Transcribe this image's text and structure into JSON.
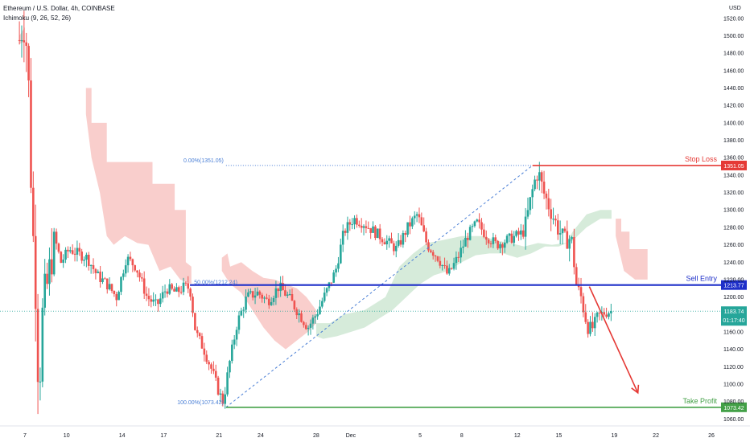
{
  "legend": {
    "symbol": "Ethereum / U.S. Dollar, 4h, COINBASE",
    "indicator": "Ichimoku (9, 26, 52, 26)"
  },
  "colors": {
    "up": "#26a69a",
    "down": "#ef5350",
    "cloud_bear": "#f8c5c3",
    "cloud_bull": "#cfe8d3",
    "stop": "#e53935",
    "entry": "#1e2fc9",
    "target": "#43a047",
    "fib": "#4a7fd6"
  },
  "chart_data": {
    "type": "candlestick",
    "title": "",
    "symbol": "Ethereum / U.S. Dollar",
    "timeframe": "4h",
    "exchange": "COINBASE",
    "indicator": "Ichimoku (9, 26, 52, 26)",
    "y_axis_label": "USD",
    "ylim": [
      1052,
      1530
    ],
    "y_ticks": [
      1060,
      1080,
      1100,
      1120,
      1140,
      1160,
      1180,
      1200,
      1220,
      1240,
      1260,
      1280,
      1300,
      1320,
      1340,
      1360,
      1380,
      1400,
      1420,
      1440,
      1460,
      1480,
      1500,
      1520
    ],
    "x_range_days": [
      6.6,
      27.1
    ],
    "x_ticks": [
      {
        "label": "7",
        "day": 7
      },
      {
        "label": "10",
        "day": 10
      },
      {
        "label": "14",
        "day": 14
      },
      {
        "label": "17",
        "day": 17
      },
      {
        "label": "21",
        "day": 21
      },
      {
        "label": "24",
        "day": 24
      },
      {
        "label": "28",
        "day": 28
      },
      {
        "label": "Dec",
        "day": 30.5
      },
      {
        "label": "5",
        "day": 35.5
      },
      {
        "label": "8",
        "day": 38.5
      },
      {
        "label": "12",
        "day": 42.5
      },
      {
        "label": "15",
        "day": 45.5
      },
      {
        "label": "19",
        "day": 49.5
      },
      {
        "label": "22",
        "day": 52.5
      },
      {
        "label": "26",
        "day": 56.5
      }
    ],
    "price_path": [
      {
        "day": 6.6,
        "price": 1495
      },
      {
        "day": 6.9,
        "price": 1520
      },
      {
        "day": 7.2,
        "price": 1480
      },
      {
        "day": 7.5,
        "price": 1300
      },
      {
        "day": 7.8,
        "price": 1200
      },
      {
        "day": 8.0,
        "price": 1085
      },
      {
        "day": 8.3,
        "price": 1190
      },
      {
        "day": 8.7,
        "price": 1220
      },
      {
        "day": 9.1,
        "price": 1270
      },
      {
        "day": 9.6,
        "price": 1240
      },
      {
        "day": 10.2,
        "price": 1255
      },
      {
        "day": 10.8,
        "price": 1250
      },
      {
        "day": 11.5,
        "price": 1245
      },
      {
        "day": 12.2,
        "price": 1225
      },
      {
        "day": 12.9,
        "price": 1215
      },
      {
        "day": 13.6,
        "price": 1200
      },
      {
        "day": 14.3,
        "price": 1245
      },
      {
        "day": 15.0,
        "price": 1235
      },
      {
        "day": 15.8,
        "price": 1200
      },
      {
        "day": 16.5,
        "price": 1190
      },
      {
        "day": 17.2,
        "price": 1210
      },
      {
        "day": 17.9,
        "price": 1205
      },
      {
        "day": 18.5,
        "price": 1212
      },
      {
        "day": 18.9,
        "price": 1210
      },
      {
        "day": 19.3,
        "price": 1160
      },
      {
        "day": 19.9,
        "price": 1140
      },
      {
        "day": 20.5,
        "price": 1115
      },
      {
        "day": 21.0,
        "price": 1090
      },
      {
        "day": 21.3,
        "price": 1079
      },
      {
        "day": 21.7,
        "price": 1120
      },
      {
        "day": 22.3,
        "price": 1170
      },
      {
        "day": 23.0,
        "price": 1200
      },
      {
        "day": 23.8,
        "price": 1205
      },
      {
        "day": 24.5,
        "price": 1195
      },
      {
        "day": 25.3,
        "price": 1212
      },
      {
        "day": 26.0,
        "price": 1200
      },
      {
        "day": 26.8,
        "price": 1180
      },
      {
        "day": 27.4,
        "price": 1165
      },
      {
        "day": 28.0,
        "price": 1180
      },
      {
        "day": 28.7,
        "price": 1205
      },
      {
        "day": 29.4,
        "price": 1230
      },
      {
        "day": 30.0,
        "price": 1275
      },
      {
        "day": 30.7,
        "price": 1290
      },
      {
        "day": 31.4,
        "price": 1285
      },
      {
        "day": 32.2,
        "price": 1275
      },
      {
        "day": 33.0,
        "price": 1265
      },
      {
        "day": 33.8,
        "price": 1255
      },
      {
        "day": 34.6,
        "price": 1280
      },
      {
        "day": 35.3,
        "price": 1295
      },
      {
        "day": 36.0,
        "price": 1260
      },
      {
        "day": 36.8,
        "price": 1245
      },
      {
        "day": 37.5,
        "price": 1225
      },
      {
        "day": 38.2,
        "price": 1245
      },
      {
        "day": 38.9,
        "price": 1270
      },
      {
        "day": 39.6,
        "price": 1285
      },
      {
        "day": 40.3,
        "price": 1270
      },
      {
        "day": 41.0,
        "price": 1260
      },
      {
        "day": 41.7,
        "price": 1265
      },
      {
        "day": 42.4,
        "price": 1270
      },
      {
        "day": 43.0,
        "price": 1275
      },
      {
        "day": 43.7,
        "price": 1330
      },
      {
        "day": 44.0,
        "price": 1345
      },
      {
        "day": 44.4,
        "price": 1320
      },
      {
        "day": 44.9,
        "price": 1300
      },
      {
        "day": 45.4,
        "price": 1280
      },
      {
        "day": 45.9,
        "price": 1265
      },
      {
        "day": 46.4,
        "price": 1268
      },
      {
        "day": 46.8,
        "price": 1210
      },
      {
        "day": 47.1,
        "price": 1200
      },
      {
        "day": 47.5,
        "price": 1172
      },
      {
        "day": 47.8,
        "price": 1160
      },
      {
        "day": 48.3,
        "price": 1178
      },
      {
        "day": 48.8,
        "price": 1182
      },
      {
        "day": 49.3,
        "price": 1184
      }
    ],
    "ichimoku_cloud": [
      {
        "sentiment": "bearish",
        "points": [
          [
            6.6,
            1500
          ],
          [
            7.0,
            1510
          ],
          [
            7.0,
            1495
          ],
          [
            6.6,
            1490
          ]
        ]
      },
      {
        "sentiment": "bearish",
        "points": [
          [
            11.4,
            1440
          ],
          [
            11.8,
            1440
          ],
          [
            11.8,
            1400
          ],
          [
            12.9,
            1400
          ],
          [
            12.9,
            1355
          ],
          [
            16.2,
            1355
          ],
          [
            16.2,
            1330
          ],
          [
            17.8,
            1330
          ],
          [
            17.8,
            1300
          ],
          [
            18.6,
            1300
          ],
          [
            18.6,
            1240
          ],
          [
            19.0,
            1235
          ],
          [
            19.0,
            1215
          ],
          [
            18.2,
            1220
          ],
          [
            17.5,
            1235
          ],
          [
            16.7,
            1230
          ],
          [
            15.9,
            1260
          ],
          [
            15.1,
            1262
          ],
          [
            14.2,
            1270
          ],
          [
            13.4,
            1260
          ],
          [
            12.9,
            1270
          ],
          [
            12.4,
            1320
          ],
          [
            11.8,
            1360
          ],
          [
            11.4,
            1410
          ]
        ]
      },
      {
        "sentiment": "bearish",
        "points": [
          [
            21.2,
            1245
          ],
          [
            21.6,
            1250
          ],
          [
            21.8,
            1235
          ],
          [
            22.6,
            1240
          ],
          [
            23.4,
            1230
          ],
          [
            24.2,
            1222
          ],
          [
            25.0,
            1220
          ],
          [
            25.8,
            1215
          ],
          [
            26.6,
            1210
          ],
          [
            27.3,
            1200
          ],
          [
            28.0,
            1185
          ],
          [
            28.0,
            1170
          ],
          [
            27.4,
            1160
          ],
          [
            26.6,
            1150
          ],
          [
            25.8,
            1140
          ],
          [
            25.0,
            1150
          ],
          [
            24.2,
            1165
          ],
          [
            23.4,
            1185
          ],
          [
            22.6,
            1205
          ],
          [
            21.8,
            1215
          ],
          [
            21.2,
            1230
          ]
        ]
      },
      {
        "sentiment": "bullish",
        "points": [
          [
            28.0,
            1170
          ],
          [
            29.0,
            1170
          ],
          [
            30.0,
            1180
          ],
          [
            31.5,
            1185
          ],
          [
            33.0,
            1200
          ],
          [
            34.0,
            1235
          ],
          [
            35.0,
            1250
          ],
          [
            36.0,
            1262
          ],
          [
            37.0,
            1265
          ],
          [
            38.5,
            1270
          ],
          [
            40.0,
            1270
          ],
          [
            41.0,
            1265
          ],
          [
            42.0,
            1262
          ],
          [
            43.0,
            1258
          ],
          [
            44.0,
            1262
          ],
          [
            45.0,
            1260
          ],
          [
            46.0,
            1262
          ],
          [
            46.5,
            1275
          ],
          [
            47.5,
            1295
          ],
          [
            48.5,
            1300
          ],
          [
            49.3,
            1300
          ],
          [
            49.3,
            1290
          ],
          [
            48.5,
            1290
          ],
          [
            47.5,
            1280
          ],
          [
            46.5,
            1265
          ],
          [
            45.5,
            1258
          ],
          [
            44.5,
            1258
          ],
          [
            43.5,
            1250
          ],
          [
            42.5,
            1245
          ],
          [
            41.5,
            1250
          ],
          [
            40.5,
            1250
          ],
          [
            39.5,
            1248
          ],
          [
            38.5,
            1240
          ],
          [
            37.5,
            1230
          ],
          [
            36.5,
            1225
          ],
          [
            35.5,
            1215
          ],
          [
            34.5,
            1200
          ],
          [
            33.5,
            1185
          ],
          [
            32.5,
            1175
          ],
          [
            31.5,
            1165
          ],
          [
            30.5,
            1160
          ],
          [
            29.5,
            1155
          ],
          [
            28.5,
            1152
          ],
          [
            28.0,
            1155
          ]
        ]
      },
      {
        "sentiment": "bearish",
        "points": [
          [
            49.6,
            1290
          ],
          [
            50.0,
            1290
          ],
          [
            50.0,
            1275
          ],
          [
            50.6,
            1275
          ],
          [
            50.6,
            1255
          ],
          [
            51.9,
            1255
          ],
          [
            51.9,
            1220
          ],
          [
            51.0,
            1220
          ],
          [
            50.2,
            1230
          ],
          [
            49.6,
            1270
          ]
        ]
      }
    ],
    "fibonacci": [
      {
        "level": "0.00%",
        "price": 1351.05,
        "label": "0.00%(1351.05)"
      },
      {
        "level": "50.00%",
        "price": 1212.24,
        "label": "50.00%(1212.24)"
      },
      {
        "level": "100.00%",
        "price": 1073.42,
        "label": "100.00%(1073.42)"
      }
    ],
    "levels": [
      {
        "name": "Stop Loss",
        "price": 1351.05,
        "price_label": "1351.05",
        "color": "stop"
      },
      {
        "name": "Sell Entry",
        "price": 1213.77,
        "price_label": "1213.77",
        "color": "entry"
      },
      {
        "name": "Take Profit",
        "price": 1073.42,
        "price_label": "1073.42",
        "color": "target"
      }
    ],
    "current_price": {
      "price": 1183.74,
      "label": "1183.74",
      "countdown": "01:17:40"
    },
    "projection_arrow": {
      "from": {
        "day": 47.7,
        "price": 1212
      },
      "to": {
        "day": 51.2,
        "price": 1090
      }
    }
  }
}
